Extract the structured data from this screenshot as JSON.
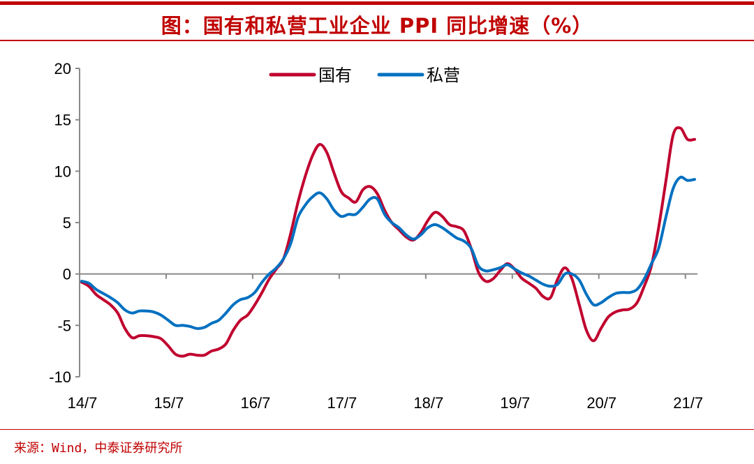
{
  "title": "图：国有和私营工业企业 PPI 同比增速（%）",
  "source": "来源：Wind，中泰证券研究所",
  "chart_data": {
    "type": "line",
    "title": "国有和私营工业企业 PPI 同比增速（%）",
    "xlabel": "",
    "ylabel": "",
    "ylim": [
      -10,
      20
    ],
    "yticks": [
      -10,
      -5,
      0,
      5,
      10,
      15,
      20
    ],
    "x_start": "2014-07",
    "x_frequency": "monthly",
    "xtick_labels": [
      "14/7",
      "15/7",
      "16/7",
      "17/7",
      "18/7",
      "19/7",
      "20/7",
      "21/7"
    ],
    "legend_position": "top-center",
    "grid": false,
    "series": [
      {
        "name": "国有",
        "color": "#c0002f",
        "values": [
          -0.8,
          -1.2,
          -2,
          -2.5,
          -3,
          -3.8,
          -5.3,
          -6.2,
          -6,
          -6,
          -6.1,
          -6.3,
          -7,
          -7.8,
          -8,
          -7.8,
          -7.9,
          -7.9,
          -7.5,
          -7.3,
          -6.8,
          -5.5,
          -4.5,
          -4,
          -3,
          -1.8,
          -0.5,
          0.5,
          1.5,
          4,
          7,
          9.5,
          11.5,
          12.6,
          11.8,
          9.8,
          8,
          7.4,
          7,
          8.2,
          8.5,
          7.8,
          6.2,
          5,
          4.3,
          3.6,
          3.3,
          4,
          5.2,
          6,
          5.6,
          4.8,
          4.6,
          4.2,
          2.5,
          0.2,
          -0.7,
          -0.5,
          0.3,
          1,
          0.5,
          -0.4,
          -0.9,
          -1.4,
          -2.2,
          -2.3,
          -0.5,
          0.6,
          -0.5,
          -3,
          -5.5,
          -6.5,
          -5.3,
          -4.2,
          -3.7,
          -3.5,
          -3.4,
          -2.8,
          -1.2,
          0.8,
          4.5,
          9,
          13.5,
          14.2,
          13.1,
          13.1
        ]
      },
      {
        "name": "私营",
        "color": "#0070c0",
        "values": [
          -0.7,
          -0.9,
          -1.5,
          -1.9,
          -2.3,
          -2.8,
          -3.5,
          -3.8,
          -3.6,
          -3.6,
          -3.7,
          -4,
          -4.5,
          -5,
          -5,
          -5.1,
          -5.3,
          -5.2,
          -4.8,
          -4.5,
          -3.8,
          -3,
          -2.5,
          -2.3,
          -1.8,
          -0.8,
          0,
          0.6,
          1.5,
          3,
          5.5,
          6.7,
          7.5,
          7.9,
          7.3,
          6.2,
          5.6,
          5.8,
          5.8,
          6.5,
          7.3,
          7.3,
          5.8,
          5,
          4.5,
          3.8,
          3.4,
          3.8,
          4.5,
          4.8,
          4.5,
          4,
          3.5,
          3.2,
          2.5,
          0.8,
          0.3,
          0.4,
          0.6,
          0.9,
          0.5,
          0.1,
          -0.2,
          -0.6,
          -1,
          -1.2,
          -1,
          0,
          0,
          -0.6,
          -2,
          -3,
          -2.8,
          -2.3,
          -1.9,
          -1.8,
          -1.8,
          -1.5,
          -0.5,
          1,
          2.5,
          5.5,
          8.3,
          9.4,
          9.1,
          9.2
        ]
      }
    ]
  }
}
